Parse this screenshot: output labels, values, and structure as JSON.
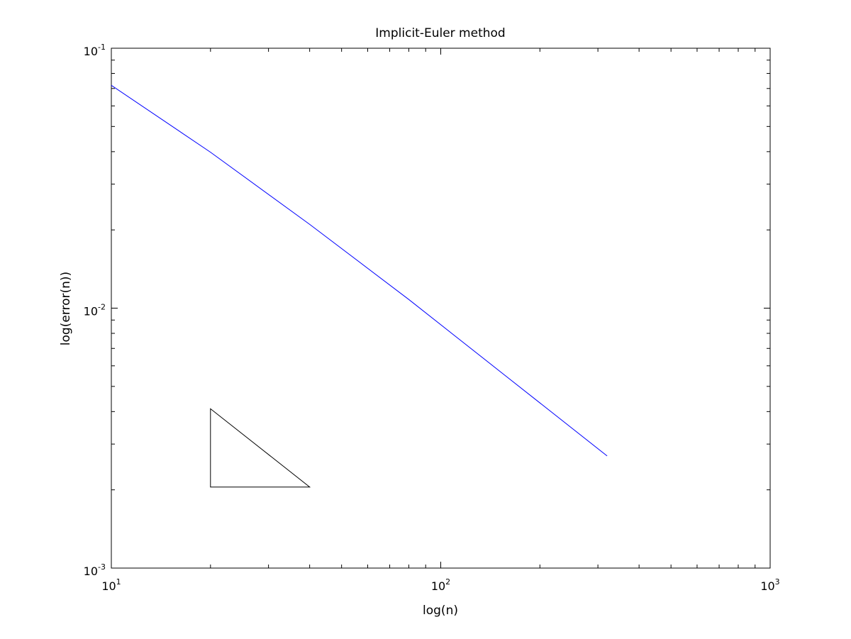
{
  "chart_data": {
    "type": "line",
    "title": "Implicit-Euler method",
    "xlabel": "log(n)",
    "ylabel": "log(error(n))",
    "x_scale": "log",
    "y_scale": "log",
    "xlim": [
      10,
      1000
    ],
    "ylim": [
      0.001,
      0.1
    ],
    "grid": false,
    "x_ticks": [
      {
        "value": 10,
        "base": "10",
        "exp": "1"
      },
      {
        "value": 100,
        "base": "10",
        "exp": "2"
      },
      {
        "value": 1000,
        "base": "10",
        "exp": "3"
      }
    ],
    "y_ticks": [
      {
        "value": 0.001,
        "base": "10",
        "exp": "-3"
      },
      {
        "value": 0.01,
        "base": "10",
        "exp": "-2"
      },
      {
        "value": 0.1,
        "base": "10",
        "exp": "-1"
      }
    ],
    "series": [
      {
        "color": "#0000ff",
        "x": [
          10,
          20,
          40,
          80,
          160,
          320
        ],
        "y": [
          0.072,
          0.0398,
          0.021,
          0.0108,
          0.0054,
          0.0027
        ]
      }
    ],
    "annotations": [
      {
        "type": "slope-triangle",
        "color": "#000000",
        "points": [
          [
            20,
            0.0041
          ],
          [
            20,
            0.00205
          ],
          [
            40,
            0.00205
          ]
        ]
      }
    ]
  }
}
